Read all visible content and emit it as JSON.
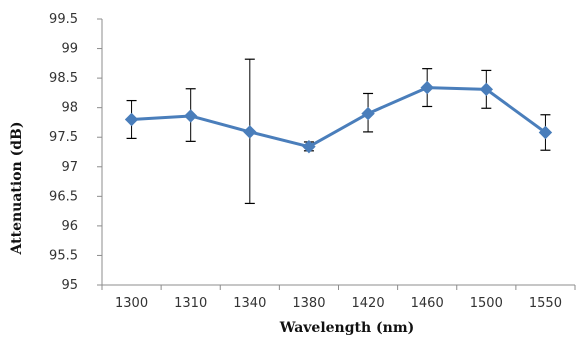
{
  "chart_data": {
    "type": "line",
    "title": "",
    "xlabel": "Wavelength (nm)",
    "ylabel": "Attenuation (dB)",
    "categories": [
      "1300",
      "1310",
      "1340",
      "1380",
      "1420",
      "1460",
      "1500",
      "1550"
    ],
    "series": [
      {
        "values": [
          97.8,
          97.86,
          97.59,
          97.34,
          97.9,
          98.34,
          98.31,
          97.58
        ],
        "error_low": [
          97.48,
          97.43,
          96.38,
          97.27,
          97.59,
          98.02,
          97.99,
          97.28
        ],
        "error_high": [
          98.12,
          98.32,
          98.82,
          97.42,
          98.24,
          98.66,
          98.63,
          97.88
        ],
        "color": "#4a7ebb",
        "marker": "diamond"
      }
    ],
    "ylim": [
      95,
      99.5
    ],
    "yticks": [
      95,
      95.5,
      96,
      96.5,
      97,
      97.5,
      98,
      98.5,
      99,
      99.5
    ],
    "ytick_labels": [
      "95",
      "95.5",
      "96",
      "96.5",
      "97",
      "97.5",
      "98",
      "98.5",
      "99",
      "99.5"
    ],
    "grid": false,
    "legend": "none",
    "colors": {
      "line": "#4a7ebb",
      "axis": "#8c8c8c",
      "error_bar": "#000000"
    }
  }
}
